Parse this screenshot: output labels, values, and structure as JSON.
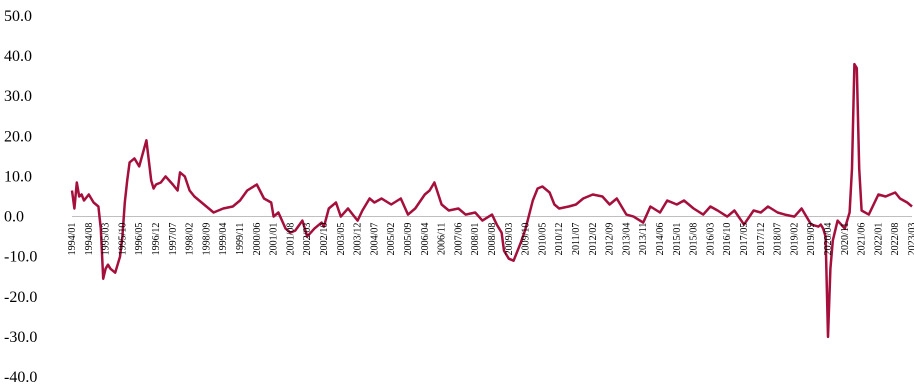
{
  "chart_data": {
    "type": "line",
    "title": "",
    "xlabel": "",
    "ylabel": "",
    "ylim": [
      -40,
      50
    ],
    "grid": false,
    "legend": "none",
    "y_ticks": [
      "50.0",
      "40.0",
      "30.0",
      "20.0",
      "10.0",
      "0.0",
      "-10.0",
      "-20.0",
      "-30.0",
      "-40.0"
    ],
    "x_tick_labels": [
      "1994/01",
      "1994/08",
      "1995/03",
      "1995/10",
      "1996/05",
      "1996/12",
      "1997/07",
      "1998/02",
      "1998/09",
      "1999/04",
      "1999/11",
      "2000/06",
      "2001/01",
      "2001/08",
      "2002/03",
      "2002/10",
      "2003/05",
      "2003/12",
      "2004/07",
      "2005/02",
      "2005/09",
      "2006/04",
      "2006/11",
      "2007/06",
      "2008/01",
      "2008/08",
      "2009/03",
      "2009/10",
      "2010/05",
      "2010/12",
      "2011/07",
      "2012/02",
      "2012/09",
      "2013/04",
      "2013/11",
      "2014/06",
      "2015/01",
      "2015/08",
      "2016/03",
      "2016/10",
      "2017/05",
      "2017/12",
      "2018/07",
      "2019/02",
      "2019/09",
      "2020/04",
      "2020/11",
      "2021/06",
      "2022/01",
      "2022/08",
      "2023/03"
    ],
    "series": [
      {
        "color": "#a50f3c",
        "x": [
          "1994/01",
          "1994/02",
          "1994/03",
          "1994/04",
          "1994/05",
          "1994/06",
          "1994/08",
          "1994/10",
          "1994/12",
          "1995/01",
          "1995/02",
          "1995/03",
          "1995/04",
          "1995/05",
          "1995/07",
          "1995/09",
          "1995/10",
          "1995/11",
          "1995/12",
          "1996/01",
          "1996/03",
          "1996/05",
          "1996/08",
          "1996/10",
          "1996/11",
          "1996/12",
          "1997/02",
          "1997/04",
          "1997/07",
          "1997/09",
          "1997/10",
          "1997/12",
          "1998/02",
          "1998/04",
          "1998/06",
          "1998/09",
          "1998/12",
          "1999/04",
          "1999/08",
          "1999/11",
          "2000/02",
          "2000/06",
          "2000/09",
          "2000/12",
          "2001/01",
          "2001/03",
          "2001/06",
          "2001/08",
          "2001/10",
          "2002/01",
          "2002/03",
          "2002/06",
          "2002/09",
          "2002/10",
          "2002/12",
          "2003/03",
          "2003/05",
          "2003/08",
          "2003/10",
          "2003/12",
          "2004/02",
          "2004/05",
          "2004/07",
          "2004/10",
          "2005/02",
          "2005/06",
          "2005/09",
          "2005/12",
          "2006/04",
          "2006/06",
          "2006/08",
          "2006/11",
          "2007/02",
          "2007/06",
          "2007/09",
          "2008/01",
          "2008/04",
          "2008/08",
          "2008/10",
          "2008/12",
          "2009/01",
          "2009/03",
          "2009/05",
          "2009/08",
          "2009/10",
          "2010/01",
          "2010/03",
          "2010/05",
          "2010/08",
          "2010/10",
          "2010/12",
          "2011/04",
          "2011/07",
          "2011/10",
          "2012/02",
          "2012/06",
          "2012/09",
          "2012/12",
          "2013/04",
          "2013/07",
          "2013/11",
          "2014/02",
          "2014/06",
          "2014/09",
          "2015/01",
          "2015/04",
          "2015/08",
          "2015/12",
          "2016/03",
          "2016/06",
          "2016/10",
          "2017/01",
          "2017/05",
          "2017/09",
          "2017/12",
          "2018/03",
          "2018/07",
          "2018/10",
          "2019/02",
          "2019/05",
          "2019/09",
          "2019/12",
          "2020/01",
          "2020/02",
          "2020/03",
          "2020/04",
          "2020/05",
          "2020/06",
          "2020/08",
          "2020/11",
          "2021/01",
          "2021/02",
          "2021/03",
          "2021/04",
          "2021/05",
          "2021/06",
          "2021/09",
          "2022/01",
          "2022/04",
          "2022/08",
          "2022/10",
          "2023/01",
          "2023/03"
        ],
        "y": [
          6.5,
          2.0,
          8.5,
          5.0,
          5.5,
          4.0,
          5.5,
          3.5,
          2.5,
          -3.0,
          -15.5,
          -13.0,
          -12.0,
          -13.0,
          -14.0,
          -10.0,
          -5.0,
          3.5,
          9.0,
          13.5,
          14.5,
          12.5,
          19.0,
          9.0,
          7.0,
          8.0,
          8.5,
          10.0,
          8.0,
          6.5,
          11.0,
          10.0,
          6.5,
          5.0,
          4.0,
          2.5,
          1.0,
          2.0,
          2.5,
          4.0,
          6.5,
          8.0,
          4.5,
          3.5,
          0.0,
          1.0,
          -3.0,
          -4.0,
          -3.5,
          -1.0,
          -5.0,
          -3.0,
          -1.5,
          -2.5,
          2.0,
          3.5,
          0.0,
          2.0,
          0.5,
          -1.0,
          1.5,
          4.5,
          3.5,
          4.5,
          3.0,
          4.5,
          0.5,
          2.0,
          5.5,
          6.5,
          8.5,
          3.0,
          1.5,
          2.0,
          0.5,
          1.0,
          -1.0,
          0.5,
          -2.0,
          -4.0,
          -8.5,
          -10.5,
          -11.0,
          -6.5,
          -3.0,
          4.0,
          7.0,
          7.5,
          6.0,
          3.0,
          2.0,
          2.5,
          3.0,
          4.5,
          5.5,
          5.0,
          3.0,
          4.5,
          0.5,
          0.0,
          -1.5,
          2.5,
          1.0,
          4.0,
          3.0,
          4.0,
          2.0,
          0.5,
          2.5,
          1.5,
          0.0,
          1.5,
          -2.0,
          1.5,
          1.0,
          2.5,
          1.0,
          0.5,
          0.0,
          2.0,
          -2.0,
          -2.5,
          -2.0,
          -3.0,
          -5.0,
          -30.0,
          -13.0,
          -6.0,
          -1.0,
          -3.0,
          1.0,
          12.0,
          38.0,
          37.0,
          12.0,
          1.5,
          0.5,
          5.5,
          5.0,
          6.0,
          4.5,
          3.5,
          2.5
        ]
      }
    ]
  }
}
